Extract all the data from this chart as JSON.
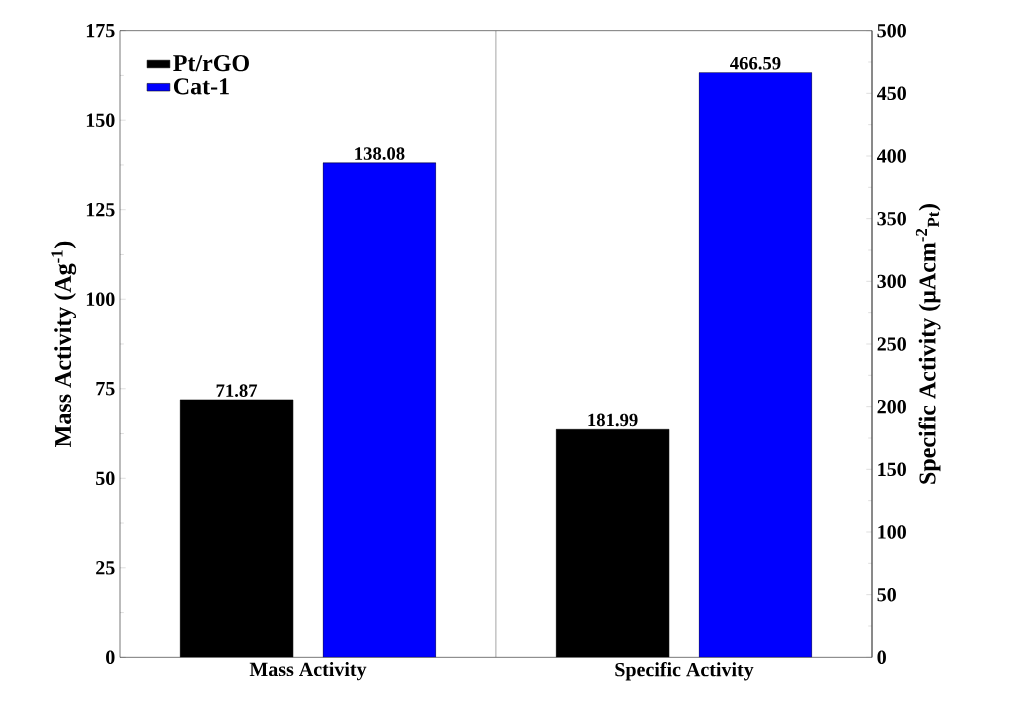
{
  "chart_data": {
    "type": "bar",
    "categories": [
      "Mass Activity",
      "Specific Activity"
    ],
    "ylabel": "Mass Activity (Ag$^{-1}$)",
    "y2label": "Specific Activity (μAcm$^{-2}$$_{Pt}$)",
    "ylim": [
      0,
      175
    ],
    "yticks": [
      0,
      25,
      50,
      75,
      100,
      125,
      150,
      175
    ],
    "y2lim": [
      0,
      500
    ],
    "y2ticks": [
      0,
      50,
      100,
      150,
      200,
      250,
      300,
      350,
      400,
      450,
      500
    ],
    "legend": "top left",
    "series": [
      {
        "name": "Pt/rGO",
        "color": "#000000",
        "values": [
          71.87,
          null
        ],
        "value_labels": [
          "71.87",
          null
        ]
      },
      {
        "name": "Cat-1",
        "color": "#0000ff",
        "values": [
          138.08,
          null
        ],
        "value_labels": [
          "138.08",
          null
        ]
      },
      {
        "color": "#000000",
        "axis": "y2",
        "values": [
          null,
          181.99
        ],
        "value_labels": [
          null,
          "181.99"
        ]
      },
      {
        "color": "#0000ff",
        "axis": "y2",
        "values": [
          null,
          466.59
        ],
        "value_labels": [
          null,
          "466.59"
        ]
      }
    ]
  }
}
